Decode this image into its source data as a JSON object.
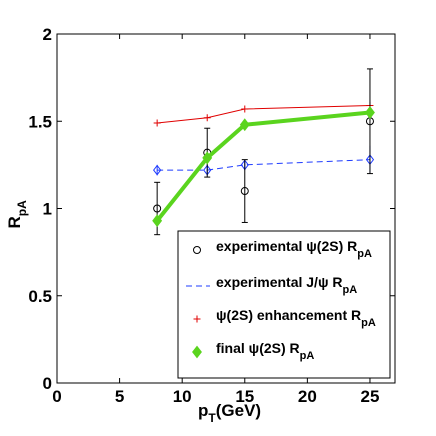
{
  "chart_data": {
    "type": "line",
    "xlabel": {
      "main": "p",
      "sub": "T",
      "suffix": "(GeV)"
    },
    "ylabel": {
      "main": "R",
      "sub": "pA"
    },
    "xlim": [
      0,
      27
    ],
    "ylim": [
      0,
      2
    ],
    "xticks": [
      0,
      5,
      10,
      15,
      20,
      25
    ],
    "yticks": [
      0,
      0.5,
      1,
      1.5,
      2
    ],
    "ytick_labels": [
      "0",
      "0.5",
      "1",
      "1.5",
      "2"
    ],
    "grid": false,
    "legend_position": "bottom-right",
    "series": [
      {
        "key": "exp_psi2s",
        "legend": {
          "main": "experimental ψ(2S) R",
          "sub": "pA"
        },
        "style": "points with error bars",
        "marker": "circle",
        "color": "#000000",
        "x": [
          8,
          12,
          15,
          25
        ],
        "y": [
          1.0,
          1.32,
          1.1,
          1.5
        ],
        "err": [
          0.15,
          0.14,
          0.18,
          0.3
        ]
      },
      {
        "key": "exp_jpsi",
        "legend": {
          "main": "experimental J/ψ R",
          "sub": "pA"
        },
        "style": "dashed line",
        "marker": "diamond",
        "color": "#1f3cff",
        "x": [
          8,
          12,
          15,
          25
        ],
        "y": [
          1.22,
          1.22,
          1.25,
          1.28
        ],
        "err": [
          0.03,
          0.03,
          0.03,
          0.08
        ]
      },
      {
        "key": "enhancement",
        "legend": {
          "main": "ψ(2S) enhancement R",
          "sub": "pA"
        },
        "style": "line",
        "marker": "plus",
        "color": "#e00000",
        "x": [
          8,
          12,
          15,
          25
        ],
        "y": [
          1.49,
          1.52,
          1.57,
          1.59
        ]
      },
      {
        "key": "final",
        "legend": {
          "main": "final ψ(2S) R",
          "sub": "pA"
        },
        "style": "thick line",
        "marker": "diamond",
        "color": "#5ad41e",
        "x": [
          8,
          12,
          15,
          25
        ],
        "y": [
          0.93,
          1.29,
          1.48,
          1.55
        ]
      }
    ]
  }
}
